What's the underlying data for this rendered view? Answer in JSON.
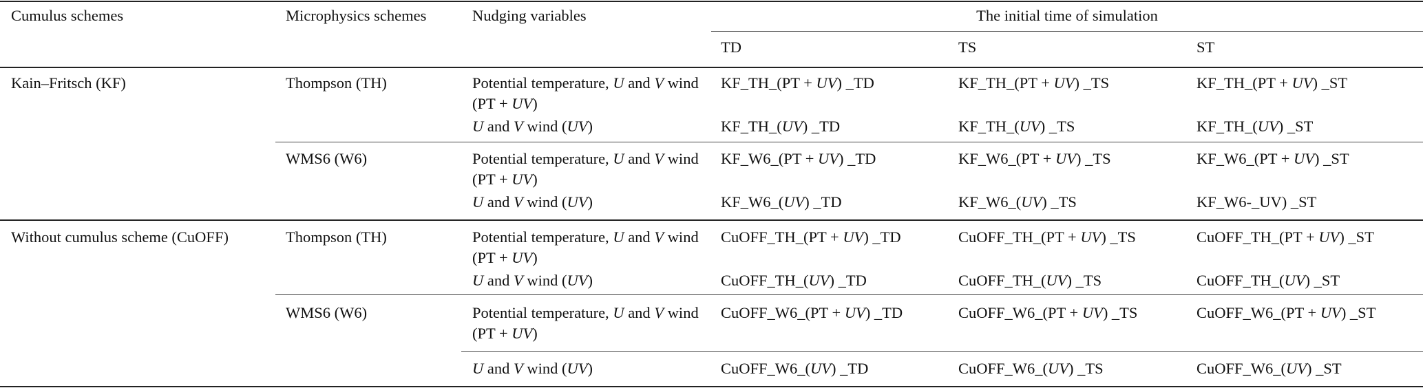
{
  "table": {
    "headers": {
      "cumulus": "Cumulus schemes",
      "microphysics": "Microphysics schemes",
      "nudging": "Nudging variables",
      "initial_time": "The initial time of simulation",
      "td": "TD",
      "ts": "TS",
      "st": "ST"
    },
    "cumulus": {
      "kf": "Kain–Fritsch (KF)",
      "cuoff": "Without cumulus scheme (CuOFF)"
    },
    "microphysics": {
      "kf_th": "Thompson (TH)",
      "kf_w6": "WMS6 (W6)",
      "cuoff_th": "Thompson (TH)",
      "cuoff_w6": "WMS6 (W6)"
    },
    "nudging": {
      "pt_uv": "Potential temperature, U and V wind (PT + UV)",
      "uv": "U and V wind (UV)"
    },
    "runs": {
      "kf_th_ptuv": [
        "KF_TH_(PT + UV) _TD",
        "KF_TH_(PT + UV) _TS",
        "KF_TH_(PT + UV) _ST"
      ],
      "kf_th_uv": [
        "KF_TH_(UV) _TD",
        "KF_TH_(UV) _TS",
        "KF_TH_(UV) _ST"
      ],
      "kf_w6_ptuv": [
        "KF_W6_(PT + UV) _TD",
        "KF_W6_(PT + UV) _TS",
        "KF_W6_(PT + UV) _ST"
      ],
      "kf_w6_uv": [
        "KF_W6_(UV) _TD",
        "KF_W6_(UV) _TS",
        "KF_W6-_UV) _ST"
      ],
      "cuoff_th_ptuv": [
        "CuOFF_TH_(PT + UV) _TD",
        "CuOFF_TH_(PT + UV) _TS",
        "CuOFF_TH_(PT + UV) _ST"
      ],
      "cuoff_th_uv": [
        "CuOFF_TH_(UV) _TD",
        "CuOFF_TH_(UV) _TS",
        "CuOFF_TH_(UV) _ST"
      ],
      "cuoff_w6_ptuv": [
        "CuOFF_W6_(PT + UV) _TD",
        "CuOFF_W6_(PT + UV) _TS",
        "CuOFF_W6_(PT + UV) _ST"
      ],
      "cuoff_w6_uv": [
        "CuOFF_W6_(UV) _TD",
        "CuOFF_W6_(UV) _TS",
        "CuOFF_W6_(UV) _ST"
      ]
    }
  }
}
